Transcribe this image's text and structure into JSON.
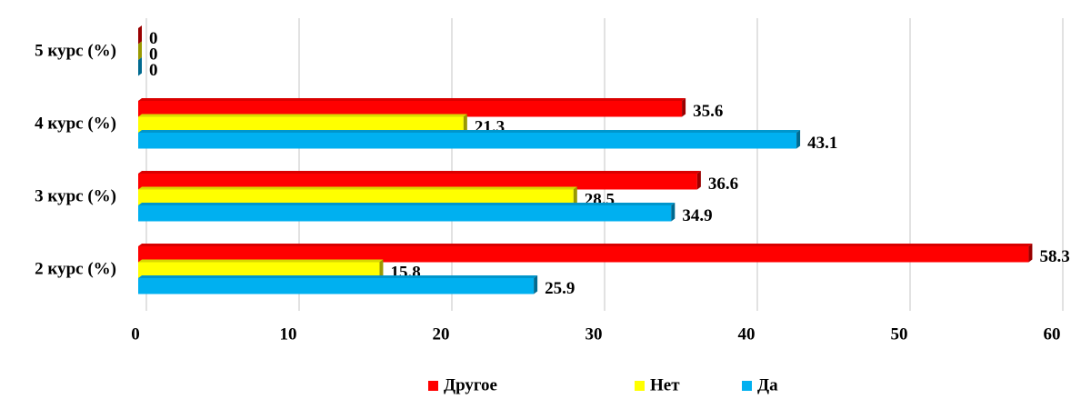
{
  "chart_data": {
    "type": "hbar",
    "categories": [
      "2 курс (%)",
      "3 курс (%)",
      "4 курс (%)",
      "5 курс (%)"
    ],
    "series": [
      {
        "name": "Другое",
        "color": "#ff0000",
        "values": [
          58.3,
          36.6,
          35.6,
          0
        ]
      },
      {
        "name": "Нет",
        "color": "#ffff00",
        "values": [
          15.8,
          28.5,
          21.3,
          0
        ]
      },
      {
        "name": "Да",
        "color": "#00b0f0",
        "values": [
          25.9,
          34.9,
          43.1,
          0
        ]
      }
    ],
    "xlim": [
      0,
      60
    ],
    "xticks": [
      0,
      10,
      20,
      30,
      40,
      50,
      60
    ],
    "grid": true,
    "legend": "bottom"
  }
}
